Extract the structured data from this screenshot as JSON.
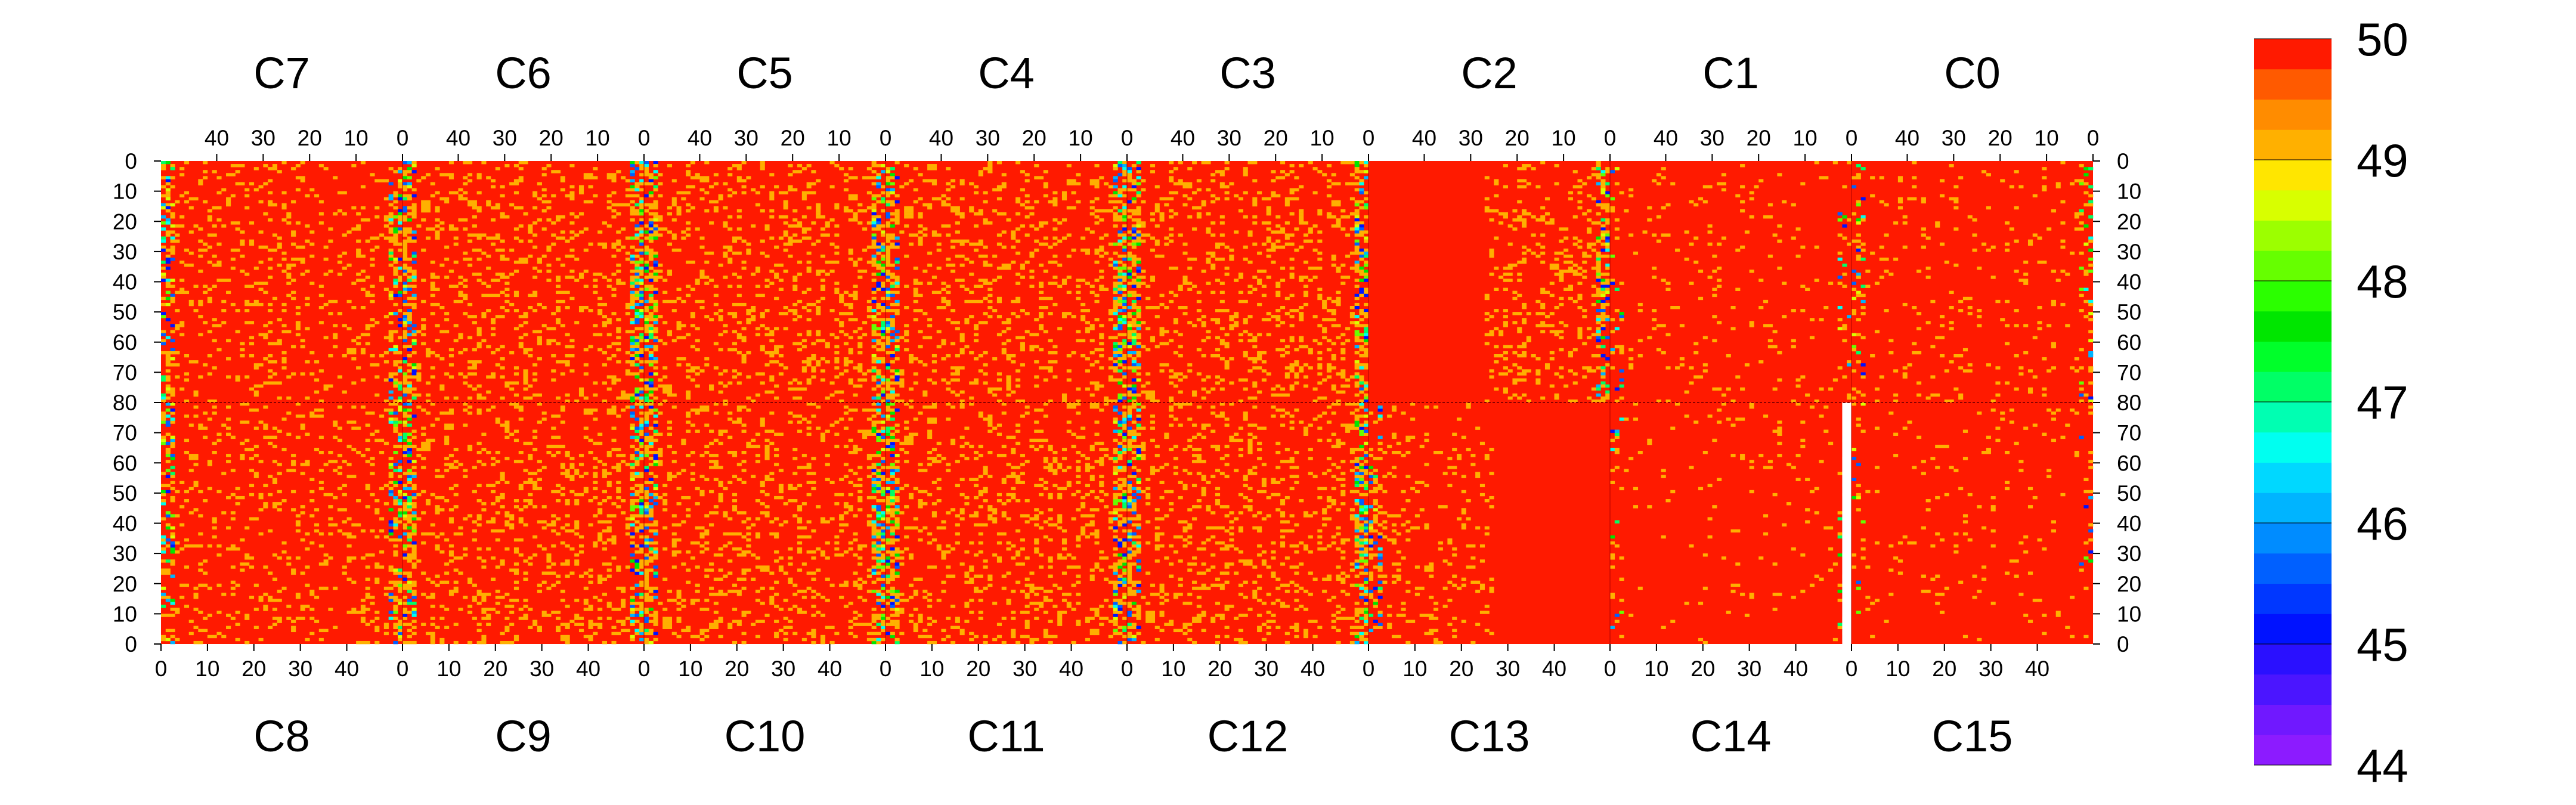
{
  "chart_data": {
    "type": "heatmap",
    "title": "",
    "xlabel": "",
    "ylabel": "",
    "top_panels": [
      "C7",
      "C6",
      "C5",
      "C4",
      "C3",
      "C2",
      "C1",
      "C0"
    ],
    "bottom_panels": [
      "C8",
      "C9",
      "C10",
      "C11",
      "C12",
      "C13",
      "C14",
      "C15"
    ],
    "top_x_ticks": [
      "40",
      "30",
      "20",
      "10",
      "0"
    ],
    "bottom_x_ticks": [
      "0",
      "10",
      "20",
      "30",
      "40"
    ],
    "top_x_tick_values": [
      40,
      30,
      20,
      10,
      0
    ],
    "bottom_x_tick_values": [
      0,
      10,
      20,
      30,
      40
    ],
    "top_y_ticks": [
      "0",
      "10",
      "20",
      "30",
      "40",
      "50",
      "60",
      "70"
    ],
    "top_y_tick_values": [
      0,
      10,
      20,
      30,
      40,
      50,
      60,
      70
    ],
    "middle_y_tick": "80",
    "bottom_y_ticks": [
      "70",
      "60",
      "50",
      "40",
      "30",
      "20",
      "10",
      "0"
    ],
    "bottom_y_tick_values": [
      70,
      60,
      50,
      40,
      30,
      20,
      10,
      0
    ],
    "columns_per_panel": 52,
    "rows_per_half": 80,
    "zlim": [
      44,
      50
    ],
    "colorbar": {
      "tick_labels": [
        "44",
        "45",
        "46",
        "47",
        "48",
        "49",
        "50"
      ],
      "tick_values": [
        44,
        45,
        46,
        47,
        48,
        49,
        50
      ],
      "levels": 24,
      "colors": [
        "#8c1bff",
        "#7018ff",
        "#4b15ff",
        "#2a10ff",
        "#0012ff",
        "#0037ff",
        "#0060ff",
        "#008cff",
        "#00b4ff",
        "#00d8ff",
        "#00fff0",
        "#00ffb2",
        "#00ff66",
        "#00ff2a",
        "#00e600",
        "#2bff00",
        "#66ff00",
        "#9cff00",
        "#d8ff00",
        "#ffe600",
        "#ffb000",
        "#ff8c00",
        "#ff5a00",
        "#ff1a00"
      ]
    },
    "pattern": {
      "base_value": 50,
      "mean_value": 49.4,
      "value_set": [
        49,
        48.5,
        48,
        47.5,
        47,
        46.5,
        46,
        45.5,
        45
      ],
      "edge_band_columns": 3,
      "panel_noise_density_top": [
        0.12,
        0.16,
        0.16,
        0.16,
        0.16,
        0.16,
        0.04,
        0.06
      ],
      "panel_noise_density_bottom": [
        0.12,
        0.16,
        0.16,
        0.16,
        0.16,
        0.1,
        0.03,
        0.03
      ],
      "panel_uniform_columns": {
        "C2": [
          27,
          52
        ],
        "C13": [
          27,
          52
        ]
      },
      "missing_region": {
        "panel": "C14",
        "columns": [
          50,
          52
        ],
        "rows": [
          0,
          80
        ]
      }
    }
  }
}
